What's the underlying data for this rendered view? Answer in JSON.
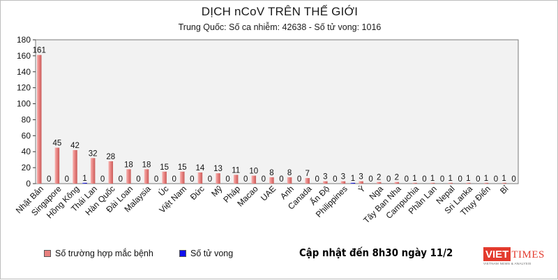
{
  "chart_data": {
    "type": "bar",
    "title": "DỊCH nCoV TRÊN THẾ GIỚI",
    "subtitle": "Trung Quốc: Số ca nhiễm: 42638 - Số tử vong: 1016",
    "categories": [
      "Nhật Bản",
      "Singapore",
      "Hồng Kông",
      "Thái Lan",
      "Hàn Quốc",
      "Đài Loan",
      "Malaysia",
      "Úc",
      "Việt Nam",
      "Đức",
      "Mỹ",
      "Pháp",
      "Macao",
      "UAE",
      "Anh",
      "Canada",
      "Ấn Độ",
      "Philippines",
      "Ý",
      "Nga",
      "Tây Ban Nha",
      "Campuchia",
      "Phần Lan",
      "Nepal",
      "Sri Lanka",
      "Thụy Điển",
      "Bỉ"
    ],
    "series": [
      {
        "name": "Số trường hợp mắc bệnh",
        "color": "#e8817f",
        "values": [
          161,
          45,
          42,
          32,
          28,
          18,
          18,
          15,
          15,
          14,
          13,
          11,
          10,
          8,
          8,
          7,
          3,
          3,
          3,
          2,
          2,
          1,
          1,
          1,
          1,
          1,
          1
        ]
      },
      {
        "name": "Số tử vong",
        "color": "#1010ee",
        "values": [
          0,
          0,
          1,
          0,
          0,
          0,
          0,
          0,
          0,
          0,
          0,
          0,
          0,
          0,
          0,
          0,
          0,
          1,
          0,
          0,
          0,
          0,
          0,
          0,
          0,
          0,
          0
        ]
      }
    ],
    "ylim": [
      0,
      180
    ],
    "yticks": [
      0,
      20,
      40,
      60,
      80,
      100,
      120,
      140,
      160,
      180
    ],
    "grid": false,
    "legend_position": "bottom-left",
    "plot_background": "#f2f2f2"
  },
  "footer": {
    "update_note": "Cập nhật đến 8h30 ngày 11/2"
  },
  "logo": {
    "part1": "VIET",
    "part2": "TIMES",
    "tagline": "VIETNAM NEWS & ANALYSIS"
  }
}
